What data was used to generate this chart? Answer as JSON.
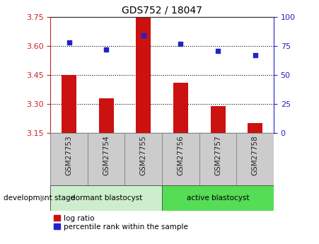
{
  "title": "GDS752 / 18047",
  "categories": [
    "GSM27753",
    "GSM27754",
    "GSM27755",
    "GSM27756",
    "GSM27757",
    "GSM27758"
  ],
  "log_ratio": [
    3.45,
    3.33,
    3.75,
    3.41,
    3.29,
    3.2
  ],
  "percentile_rank": [
    78,
    72,
    84,
    77,
    71,
    67
  ],
  "baseline": 3.15,
  "ylim_left": [
    3.15,
    3.75
  ],
  "ylim_right": [
    0,
    100
  ],
  "yticks_left": [
    3.15,
    3.3,
    3.45,
    3.6,
    3.75
  ],
  "yticks_right": [
    0,
    25,
    50,
    75,
    100
  ],
  "bar_color": "#cc1111",
  "dot_color": "#2222cc",
  "group1_label": "dormant blastocyst",
  "group2_label": "active blastocyst",
  "group1_indices": [
    0,
    1,
    2
  ],
  "group2_indices": [
    3,
    4,
    5
  ],
  "group1_color": "#cceecc",
  "group2_color": "#55dd55",
  "label_log_ratio": "log ratio",
  "label_percentile": "percentile rank within the sample",
  "dev_stage_label": "development stage",
  "left_axis_color": "#cc2222",
  "right_axis_color": "#2222cc",
  "grid_color": "#000000",
  "background_color": "#ffffff",
  "tick_area_color": "#cccccc",
  "bar_width": 0.4
}
